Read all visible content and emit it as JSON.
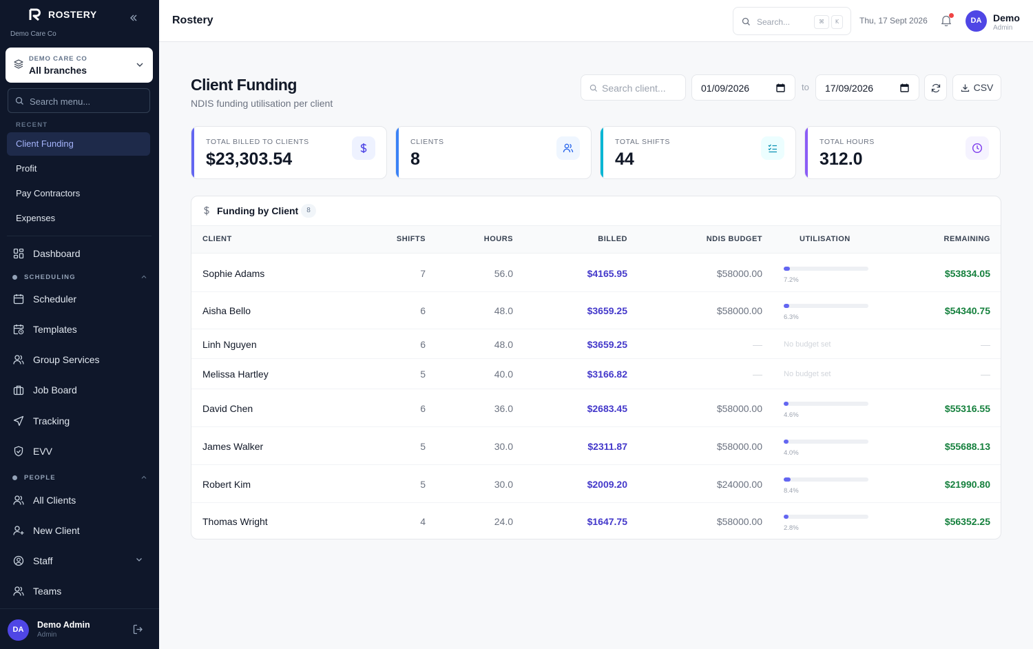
{
  "sidebar": {
    "logo_text": "ROSTERY",
    "org_subtitle": "Demo Care Co",
    "branch": {
      "org": "DEMO CARE CO",
      "value": "All branches"
    },
    "search_placeholder": "Search menu...",
    "recent_label": "RECENT",
    "recent": [
      "Client Funding",
      "Profit",
      "Pay Contractors",
      "Expenses"
    ],
    "dashboard": "Dashboard",
    "scheduling_label": "SCHEDULING",
    "scheduling": [
      "Scheduler",
      "Templates",
      "Group Services",
      "Job Board",
      "Tracking",
      "EVV"
    ],
    "people_label": "PEOPLE",
    "people": [
      "All Clients",
      "New Client",
      "Staff",
      "Teams"
    ],
    "user": {
      "initials": "DA",
      "name": "Demo Admin",
      "role": "Admin"
    }
  },
  "topbar": {
    "brand": "Rostery",
    "search_placeholder": "Search...",
    "kbd": [
      "⌘",
      "K"
    ],
    "date": "Thu, 17 Sept 2026",
    "user": {
      "initials": "DA",
      "name": "Demo",
      "role": "Admin"
    }
  },
  "page": {
    "title": "Client Funding",
    "subtitle": "NDIS funding utilisation per client",
    "client_search_placeholder": "Search client...",
    "date_from": "01/09/2026",
    "to_label": "to",
    "date_to": "17/09/2026",
    "csv_label": "CSV"
  },
  "stats": [
    {
      "label": "TOTAL BILLED TO CLIENTS",
      "value": "$23,303.54",
      "icon": "dollar-icon",
      "color": "#6366f1",
      "icon_bg": "#eef2ff"
    },
    {
      "label": "CLIENTS",
      "value": "8",
      "icon": "users-icon",
      "color": "#3b82f6",
      "icon_bg": "#eff6ff"
    },
    {
      "label": "TOTAL SHIFTS",
      "value": "44",
      "icon": "list-check-icon",
      "color": "#06b6d4",
      "icon_bg": "#ecfeff"
    },
    {
      "label": "TOTAL HOURS",
      "value": "312.0",
      "icon": "clock-icon",
      "color": "#8b5cf6",
      "icon_bg": "#f5f3ff"
    }
  ],
  "table": {
    "title": "Funding by Client",
    "count": "8",
    "columns": [
      "CLIENT",
      "SHIFTS",
      "HOURS",
      "BILLED",
      "NDIS BUDGET",
      "UTILISATION",
      "REMAINING"
    ],
    "no_budget_text": "No budget set",
    "dash": "—",
    "rows": [
      {
        "client": "Sophie Adams",
        "shifts": "7",
        "hours": "56.0",
        "billed": "$4165.95",
        "budget": "$58000.00",
        "util": 7.2,
        "util_label": "7.2%",
        "remaining": "$53834.05"
      },
      {
        "client": "Aisha Bello",
        "shifts": "6",
        "hours": "48.0",
        "billed": "$3659.25",
        "budget": "$58000.00",
        "util": 6.3,
        "util_label": "6.3%",
        "remaining": "$54340.75"
      },
      {
        "client": "Linh Nguyen",
        "shifts": "6",
        "hours": "48.0",
        "billed": "$3659.25",
        "budget": null,
        "util": null,
        "util_label": null,
        "remaining": null
      },
      {
        "client": "Melissa Hartley",
        "shifts": "5",
        "hours": "40.0",
        "billed": "$3166.82",
        "budget": null,
        "util": null,
        "util_label": null,
        "remaining": null
      },
      {
        "client": "David Chen",
        "shifts": "6",
        "hours": "36.0",
        "billed": "$2683.45",
        "budget": "$58000.00",
        "util": 4.6,
        "util_label": "4.6%",
        "remaining": "$55316.55"
      },
      {
        "client": "James Walker",
        "shifts": "5",
        "hours": "30.0",
        "billed": "$2311.87",
        "budget": "$58000.00",
        "util": 4.0,
        "util_label": "4.0%",
        "remaining": "$55688.13"
      },
      {
        "client": "Robert Kim",
        "shifts": "5",
        "hours": "30.0",
        "billed": "$2009.20",
        "budget": "$24000.00",
        "util": 8.4,
        "util_label": "8.4%",
        "remaining": "$21990.80"
      },
      {
        "client": "Thomas Wright",
        "shifts": "4",
        "hours": "24.0",
        "billed": "$1647.75",
        "budget": "$58000.00",
        "util": 2.8,
        "util_label": "2.8%",
        "remaining": "$56352.25"
      }
    ]
  }
}
